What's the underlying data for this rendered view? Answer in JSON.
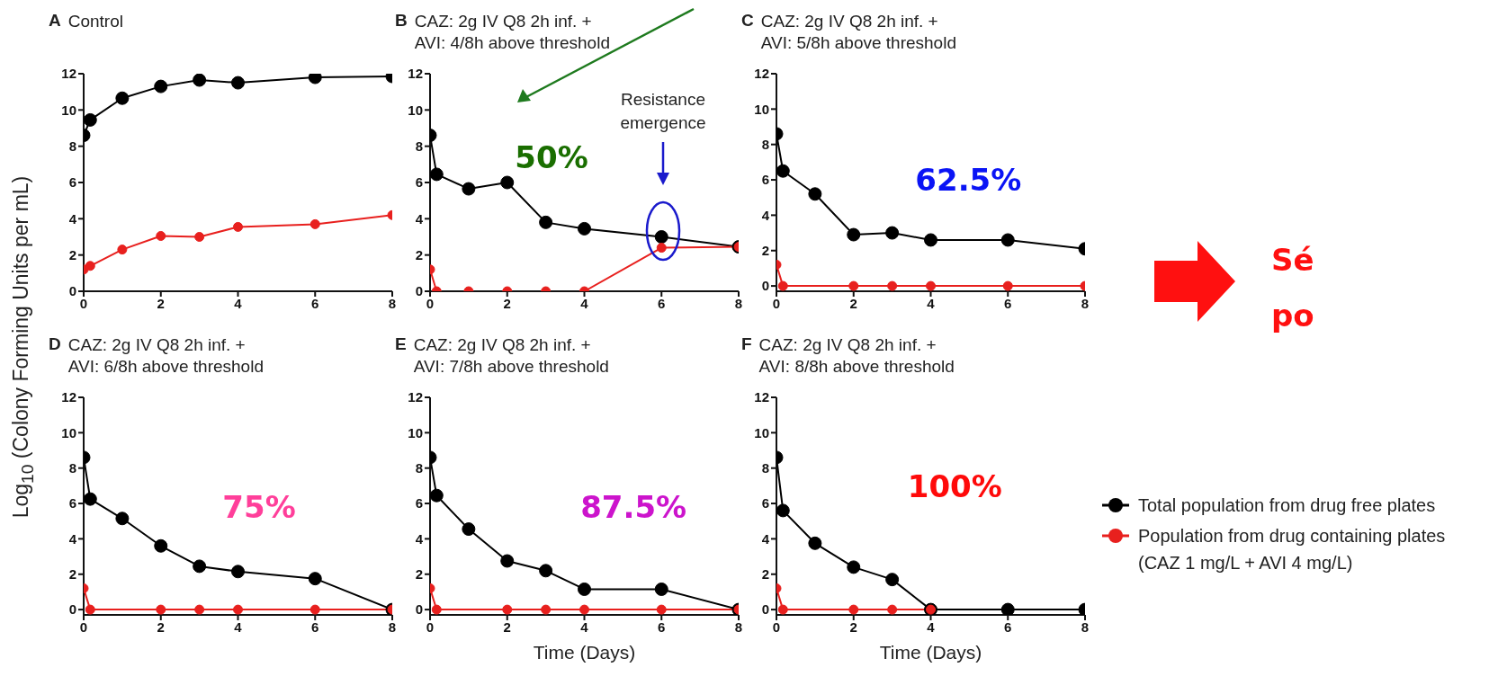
{
  "chart_data": [
    {
      "type": "line",
      "title": "A",
      "subtitle": "Control",
      "ylabel": "Log$_{10}$ (Colony Forming Units per mL)",
      "xlim": [
        0,
        8
      ],
      "xticks": [
        0,
        2,
        4,
        6,
        8
      ],
      "ylim": [
        0,
        12
      ],
      "yticks": [
        0,
        2,
        4,
        6,
        8,
        10,
        12
      ],
      "marker": "circle",
      "grid": false,
      "series": [
        {
          "color": "#000000",
          "x": [
            0,
            0.17,
            1,
            2,
            3,
            4,
            6,
            8
          ],
          "values": [
            8.6,
            9.45,
            10.65,
            11.3,
            11.65,
            11.5,
            11.8,
            11.85
          ]
        },
        {
          "color": "#e8201e",
          "x": [
            0,
            0.17,
            1,
            2,
            3,
            4,
            6,
            8
          ],
          "values": [
            1.2,
            1.4,
            2.3,
            3.05,
            3.0,
            3.55,
            3.7,
            4.2
          ]
        }
      ]
    },
    {
      "type": "line",
      "title": "B",
      "subtitle": "CAZ: 2g IV Q8 2h inf. +\nAVI:  4/8h above threshold",
      "xlim": [
        0,
        8
      ],
      "xticks": [
        0,
        2,
        4,
        6,
        8
      ],
      "ylim": [
        0,
        12
      ],
      "yticks": [
        0,
        2,
        4,
        6,
        8,
        10,
        12
      ],
      "marker": "circle",
      "grid": false,
      "annotations": [
        "50%",
        "Resistance\nemergence"
      ],
      "series": [
        {
          "color": "#000000",
          "x": [
            0,
            0.17,
            1,
            2,
            3,
            4,
            6,
            8
          ],
          "values": [
            8.6,
            6.45,
            5.65,
            6.0,
            3.8,
            3.45,
            3.0,
            2.45
          ]
        },
        {
          "color": "#e8201e",
          "x": [
            0,
            0.17,
            1,
            2,
            3,
            4,
            6,
            8
          ],
          "values": [
            1.2,
            0,
            0,
            0,
            0,
            0,
            2.4,
            2.45
          ]
        }
      ]
    },
    {
      "type": "line",
      "title": "C",
      "subtitle": "CAZ: 2g IV Q8 2h inf. +\nAVI:  5/8h above threshold",
      "xlim": [
        0,
        8
      ],
      "xticks": [
        0,
        2,
        4,
        6,
        8
      ],
      "ylim": [
        -0.3,
        12
      ],
      "yticks": [
        0,
        2,
        4,
        6,
        8,
        10,
        12
      ],
      "marker": "circle",
      "grid": false,
      "annotations": [
        "62.5%"
      ],
      "series": [
        {
          "color": "#000000",
          "x": [
            0,
            0.17,
            1,
            2,
            3,
            4,
            6,
            8
          ],
          "values": [
            8.6,
            6.5,
            5.2,
            2.9,
            3.0,
            2.6,
            2.6,
            2.1
          ]
        },
        {
          "color": "#e8201e",
          "x": [
            0,
            0.17,
            2,
            3,
            4,
            6,
            8
          ],
          "values": [
            1.2,
            0,
            0,
            0,
            0,
            0,
            0
          ]
        }
      ]
    },
    {
      "type": "line",
      "title": "D",
      "subtitle": "CAZ: 2g IV Q8 2h inf. +\nAVI:  6/8h above threshold",
      "xlim": [
        0,
        8
      ],
      "xticks": [
        0,
        2,
        4,
        6,
        8
      ],
      "ylim": [
        -0.3,
        12
      ],
      "yticks": [
        0,
        2,
        4,
        6,
        8,
        10,
        12
      ],
      "marker": "circle",
      "grid": false,
      "annotations": [
        "75%"
      ],
      "series": [
        {
          "color": "#000000",
          "x": [
            0,
            0.17,
            1,
            2,
            3,
            4,
            6,
            8
          ],
          "values": [
            8.6,
            6.25,
            5.15,
            3.6,
            2.45,
            2.15,
            1.75,
            0
          ]
        },
        {
          "color": "#e8201e",
          "x": [
            0,
            0.17,
            2,
            3,
            4,
            6,
            8
          ],
          "values": [
            1.2,
            0,
            0,
            0,
            0,
            0,
            0
          ]
        }
      ]
    },
    {
      "type": "line",
      "title": "E",
      "subtitle": "CAZ: 2g IV Q8 2h inf. +\nAVI:  7/8h above threshold",
      "xlabel": "Time (Days)",
      "xlim": [
        0,
        8
      ],
      "xticks": [
        0,
        2,
        4,
        6,
        8
      ],
      "ylim": [
        -0.3,
        12
      ],
      "yticks": [
        0,
        2,
        4,
        6,
        8,
        10,
        12
      ],
      "marker": "circle",
      "grid": false,
      "annotations": [
        "87.5%"
      ],
      "series": [
        {
          "color": "#000000",
          "x": [
            0,
            0.17,
            1,
            2,
            3,
            4,
            6,
            8
          ],
          "values": [
            8.6,
            6.45,
            4.55,
            2.75,
            2.2,
            1.15,
            1.15,
            0
          ]
        },
        {
          "color": "#e8201e",
          "x": [
            0,
            0.17,
            2,
            3,
            4,
            6,
            8
          ],
          "values": [
            1.2,
            0,
            0,
            0,
            0,
            0,
            0
          ]
        }
      ]
    },
    {
      "type": "line",
      "title": "F",
      "subtitle": "CAZ: 2g IV Q8 2h inf. +\nAVI:  8/8h above threshold",
      "xlabel": "Time (Days)",
      "xlim": [
        0,
        8
      ],
      "xticks": [
        0,
        2,
        4,
        6,
        8
      ],
      "ylim": [
        -0.3,
        12
      ],
      "yticks": [
        0,
        2,
        4,
        6,
        8,
        10,
        12
      ],
      "marker": "circle",
      "grid": false,
      "legend": "right",
      "annotations": [
        "100%"
      ],
      "series": [
        {
          "name": "Total population from drug free plates",
          "color": "#000000",
          "x": [
            0,
            0.17,
            1,
            2,
            3,
            4,
            6,
            8
          ],
          "values": [
            8.6,
            5.6,
            3.75,
            2.4,
            1.7,
            0,
            0,
            0
          ]
        },
        {
          "name": "Population from drug containing plates (CAZ 1 mg/L + AVI 4 mg/L)",
          "color": "#e8201e",
          "x": [
            0,
            0.17,
            2,
            3,
            4
          ],
          "values": [
            1.2,
            0,
            0,
            0,
            0
          ]
        }
      ]
    },
    {
      "type": "other",
      "annotations": [
        "Sé",
        "po"
      ]
    }
  ]
}
